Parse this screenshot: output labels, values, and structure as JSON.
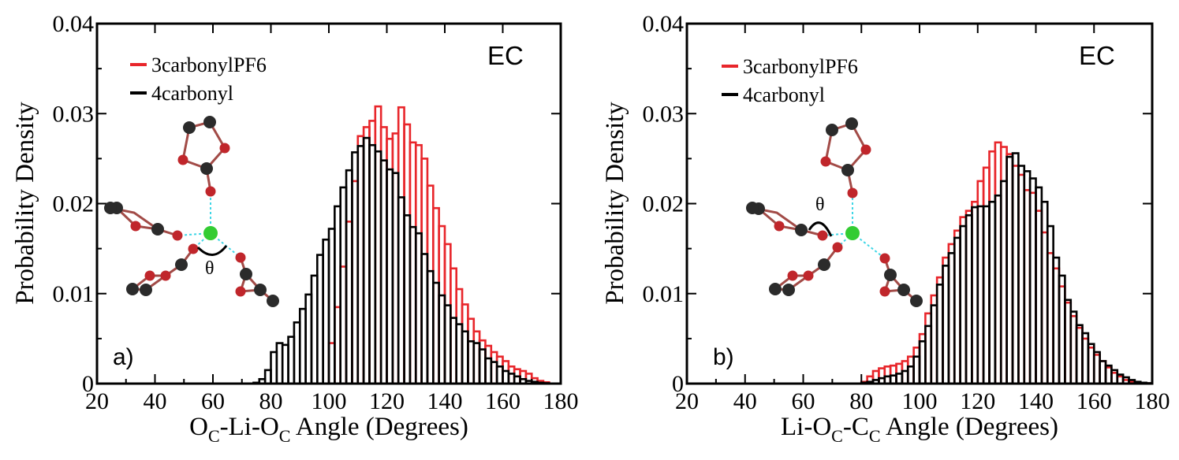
{
  "colors": {
    "series_red": "#e8262b",
    "series_black": "#000000",
    "oxygen": "#c0262b",
    "carbon": "#2b2b2b",
    "lithium": "#33cc33",
    "bond": "#a24b47",
    "coordination": "#3fd6e6"
  },
  "chart_data": [
    {
      "type": "bar",
      "panel_label": "a)",
      "solvent": "EC",
      "theta_label": "θ",
      "ylabel": "Probability Density",
      "xlabel": {
        "main1": "O",
        "sub1": "C",
        "main2": "-Li-O",
        "sub2": "C",
        "main3": " Angle (Degrees)"
      },
      "xlim": [
        20,
        180
      ],
      "ylim": [
        0,
        0.04
      ],
      "xticks": [
        "20",
        "40",
        "60",
        "80",
        "100",
        "120",
        "140",
        "160",
        "180"
      ],
      "yticks": [
        "0",
        "0.01",
        "0.02",
        "0.03",
        "0.04"
      ],
      "bin_width": 2,
      "bin_start": 74,
      "series": [
        {
          "name": "3carbonylPF6",
          "color": "#e8262b",
          "values": [
            0,
            0,
            0,
            0,
            0,
            0,
            0,
            0,
            0,
            0,
            0,
            0,
            0,
            0.0045,
            0.0085,
            0.013,
            0.018,
            0.0225,
            0.0275,
            0.0285,
            0.0292,
            0.0308,
            0.0285,
            0.0272,
            0.0278,
            0.0307,
            0.0288,
            0.0268,
            0.0265,
            0.025,
            0.022,
            0.0195,
            0.0175,
            0.0155,
            0.0128,
            0.0105,
            0.0088,
            0.0072,
            0.0058,
            0.0048,
            0.0042,
            0.0035,
            0.003,
            0.0025,
            0.0019,
            0.0016,
            0.0014,
            0.0011,
            0.0006,
            0.0003,
            0.00015
          ]
        },
        {
          "name": "4carbonyl",
          "color": "#000000",
          "values": [
            0.0001,
            0.0005,
            0.0015,
            0.0035,
            0.0045,
            0.0043,
            0.0052,
            0.0068,
            0.0083,
            0.0099,
            0.012,
            0.0143,
            0.016,
            0.0172,
            0.0197,
            0.0218,
            0.0237,
            0.0257,
            0.0264,
            0.0273,
            0.0265,
            0.0258,
            0.0248,
            0.0238,
            0.0234,
            0.0207,
            0.0187,
            0.0174,
            0.0167,
            0.0144,
            0.0125,
            0.0112,
            0.0098,
            0.0087,
            0.0073,
            0.0066,
            0.0058,
            0.0047,
            0.0045,
            0.0038,
            0.0028,
            0.0024,
            0.0019,
            0.0014,
            0.0011,
            0.0008,
            0.0005,
            0.0003,
            0.0002,
            0.0001,
            5e-05
          ]
        }
      ]
    },
    {
      "type": "bar",
      "panel_label": "b)",
      "solvent": "EC",
      "theta_label": "θ",
      "ylabel": "Probability Density",
      "xlabel": {
        "main1": "Li-O",
        "sub1": "C",
        "main2": "-C",
        "sub2": "C",
        "main3": " Angle (Degrees)"
      },
      "xlim": [
        20,
        180
      ],
      "ylim": [
        0,
        0.04
      ],
      "xticks": [
        "20",
        "40",
        "60",
        "80",
        "100",
        "120",
        "140",
        "160",
        "180"
      ],
      "yticks": [
        "0",
        "0.01",
        "0.02",
        "0.03",
        "0.04"
      ],
      "bin_width": 2,
      "bin_start": 80,
      "series": [
        {
          "name": "3carbonylPF6",
          "color": "#e8262b",
          "values": [
            0.0002,
            0.0008,
            0.0014,
            0.0017,
            0.0019,
            0.002,
            0.0022,
            0.0025,
            0.003,
            0.004,
            0.0055,
            0.0078,
            0.0098,
            0.0118,
            0.014,
            0.0155,
            0.017,
            0.0185,
            0.0192,
            0.0202,
            0.0225,
            0.024,
            0.0258,
            0.0268,
            0.0263,
            0.0255,
            0.0242,
            0.0232,
            0.0215,
            0.0212,
            0.0192,
            0.0168,
            0.0145,
            0.0128,
            0.0108,
            0.009,
            0.0075,
            0.0062,
            0.005,
            0.004,
            0.0032,
            0.0025,
            0.0018,
            0.0012,
            0.0008,
            0.0004,
            0.0002,
            0.0001,
            5e-05,
            3e-05
          ]
        },
        {
          "name": "4carbonyl",
          "color": "#000000",
          "values": [
            0.0001,
            0.0002,
            0.0004,
            0.0006,
            0.0008,
            0.0009,
            0.0011,
            0.0014,
            0.0019,
            0.003,
            0.0047,
            0.0064,
            0.0087,
            0.011,
            0.0131,
            0.0145,
            0.0162,
            0.0175,
            0.0187,
            0.0196,
            0.0197,
            0.0197,
            0.0202,
            0.0209,
            0.0225,
            0.0252,
            0.0256,
            0.0242,
            0.0236,
            0.0228,
            0.0218,
            0.0202,
            0.0175,
            0.014,
            0.012,
            0.0093,
            0.008,
            0.0065,
            0.0056,
            0.0044,
            0.0035,
            0.0025,
            0.002,
            0.0015,
            0.001,
            0.0007,
            0.0004,
            0.0002,
            0.0001,
            5e-05
          ]
        }
      ]
    }
  ]
}
